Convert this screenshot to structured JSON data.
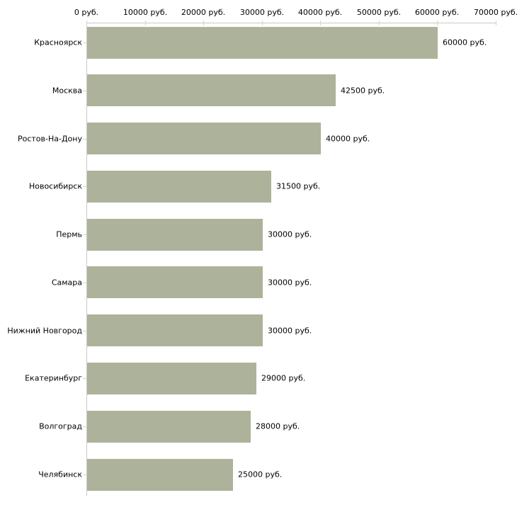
{
  "chart_data": {
    "type": "bar",
    "orientation": "horizontal",
    "title": "",
    "xlabel": "",
    "ylabel": "",
    "unit": "руб.",
    "categories": [
      "Красноярск",
      "Москва",
      "Ростов-На-Дону",
      "Новосибирск",
      "Пермь",
      "Самара",
      "Нижний Новгород",
      "Екатеринбург",
      "Волгоград",
      "Челябинск"
    ],
    "values": [
      60000,
      42500,
      40000,
      31500,
      30000,
      30000,
      30000,
      29000,
      28000,
      25000
    ],
    "value_labels": [
      "60000 руб.",
      "42500 руб.",
      "40000 руб.",
      "31500 руб.",
      "30000 руб.",
      "30000 руб.",
      "30000 руб.",
      "29000 руб.",
      "28000 руб.",
      "25000 руб."
    ],
    "x_axis": {
      "position": "top",
      "min": 0,
      "max": 70000,
      "tick_step": 10000,
      "tick_labels": [
        "0 руб.",
        "10000 руб.",
        "20000 руб.",
        "30000 руб.",
        "40000 руб.",
        "50000 руб.",
        "60000 руб.",
        "70000 руб."
      ]
    },
    "grid": false,
    "legend": false,
    "colors": {
      "bar": "#adb39a",
      "axis_line": "#c9c9c9",
      "tick": "#d5d7bb",
      "text": "#000000",
      "background": "#ffffff"
    }
  }
}
